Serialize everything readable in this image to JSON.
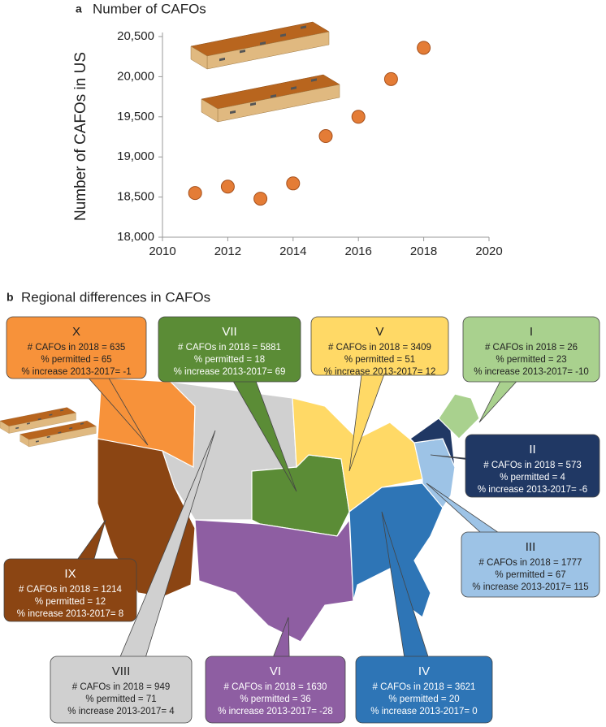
{
  "chart_data": {
    "type": "scatter",
    "panel": "a",
    "title": "Number of CAFOs",
    "y_label": "Number of CAFOs in US",
    "x": [
      2011,
      2012,
      2013,
      2014,
      2015,
      2016,
      2017,
      2018
    ],
    "values": [
      18550,
      18630,
      18480,
      18670,
      19260,
      19500,
      19970,
      20360
    ],
    "color": "#e47c36",
    "xlim": [
      2010,
      2020
    ],
    "xticks": [
      2010,
      2012,
      2014,
      2016,
      2018,
      2020
    ],
    "ylim": [
      18000,
      20500
    ],
    "yticks": [
      {
        "value": 18000,
        "label": "18,000"
      },
      {
        "value": 18500,
        "label": "18,500"
      },
      {
        "value": 19000,
        "label": "19,000"
      },
      {
        "value": 19500,
        "label": "19,500"
      },
      {
        "value": 20000,
        "label": "20,000"
      },
      {
        "value": 20500,
        "label": "20,500"
      }
    ],
    "grid": false
  },
  "map": {
    "panel": "b",
    "title": "Regional differences in CAFOs",
    "regions": [
      {
        "name": "X",
        "color": "#f7923a",
        "lines": [
          "# CAFOs in 2018 = 635",
          "% permitted = 65",
          "% increase 2013-2017= -1"
        ]
      },
      {
        "name": "VII",
        "color": "#5b8c36",
        "lines": [
          "# CAFOs in 2018 = 5881",
          "% permitted = 18",
          "% increase 2013-2017= 69"
        ]
      },
      {
        "name": "V",
        "color": "#ffd966",
        "lines": [
          "# CAFOs in 2018 = 3409",
          "% permitted = 51",
          "% increase 2013-2017= 12"
        ]
      },
      {
        "name": "I",
        "color": "#a9d18e",
        "lines": [
          "# CAFOs in 2018 = 26",
          "% permitted = 23",
          "% increase 2013-2017= -10"
        ]
      },
      {
        "name": "II",
        "color": "#203864",
        "lines": [
          "# CAFOs in 2018 = 573",
          "% permitted = 4",
          "% increase 2013-2017= -6"
        ]
      },
      {
        "name": "III",
        "color": "#9dc3e6",
        "lines": [
          "# CAFOs in 2018 = 1777",
          "% permitted = 67",
          "% increase 2013-2017= 115"
        ]
      },
      {
        "name": "IX",
        "color": "#8b4513",
        "lines": [
          "# CAFOs in 2018 = 1214",
          "% permitted = 12",
          "% increase 2013-2017= 8"
        ]
      },
      {
        "name": "VIII",
        "color": "#d0d0d0",
        "lines": [
          "# CAFOs in 2018 = 949",
          "% permitted = 71",
          "% increase 2013-2017= 4"
        ]
      },
      {
        "name": "VI",
        "color": "#8e5ea2",
        "lines": [
          "# CAFOs in 2018 = 1630",
          "% permitted = 36",
          "% increase 2013-2017= -28"
        ]
      },
      {
        "name": "IV",
        "color": "#2e75b6",
        "lines": [
          "# CAFOs in 2018 = 3621",
          "% permitted = 20",
          "% increase 2013-2017= 0"
        ]
      }
    ]
  }
}
